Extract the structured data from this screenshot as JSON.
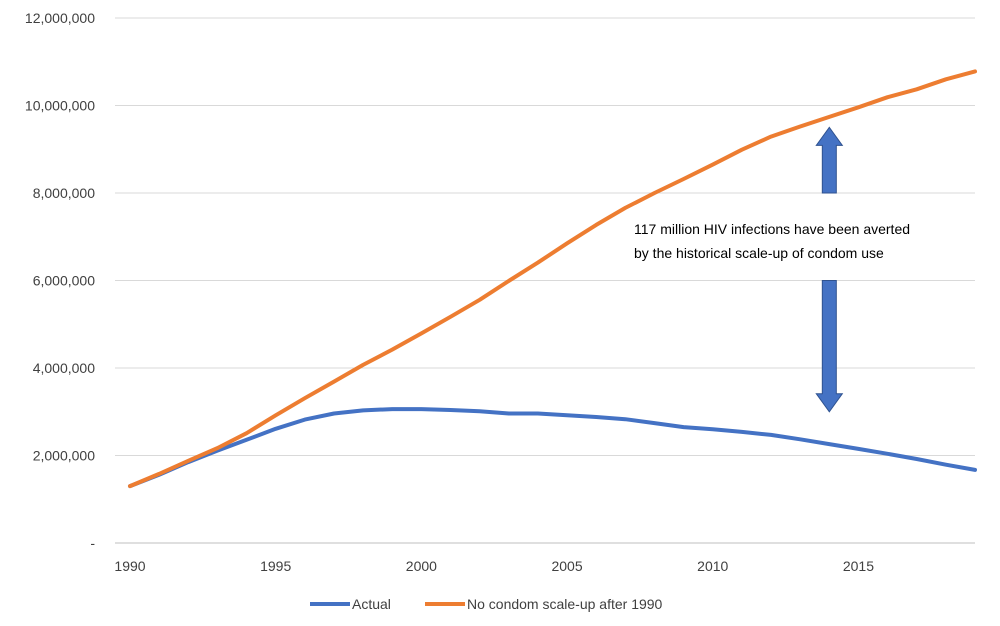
{
  "chart_data": {
    "type": "line",
    "title": "",
    "xlabel": "",
    "ylabel": "",
    "x": [
      1990,
      1991,
      1992,
      1993,
      1994,
      1995,
      1996,
      1997,
      1998,
      1999,
      2000,
      2001,
      2002,
      2003,
      2004,
      2005,
      2006,
      2007,
      2008,
      2009,
      2010,
      2011,
      2012,
      2013,
      2014,
      2015,
      2016,
      2017,
      2018,
      2019
    ],
    "xlim": [
      1990,
      2019
    ],
    "ylim": [
      0,
      12000000
    ],
    "x_ticks": [
      1990,
      1995,
      2000,
      2005,
      2010,
      2015
    ],
    "x_tick_labels": [
      "1990",
      "1995",
      "2000",
      "2005",
      "2010",
      "2015"
    ],
    "y_ticks": [
      0,
      2000000,
      4000000,
      6000000,
      8000000,
      10000000,
      12000000
    ],
    "y_tick_labels": [
      "-",
      "2,000,000",
      "4,000,000",
      "6,000,000",
      "8,000,000",
      "10,000,000",
      "12,000,000"
    ],
    "grid": true,
    "legend_position": "bottom",
    "series": [
      {
        "name": "Actual",
        "color": "#4472c4",
        "values": [
          1300000,
          1560000,
          1850000,
          2110000,
          2360000,
          2610000,
          2820000,
          2960000,
          3030000,
          3060000,
          3060000,
          3040000,
          3010000,
          2960000,
          2960000,
          2920000,
          2880000,
          2830000,
          2740000,
          2650000,
          2600000,
          2540000,
          2470000,
          2370000,
          2260000,
          2150000,
          2040000,
          1920000,
          1790000,
          1670000
        ]
      },
      {
        "name": "No condom scale-up after 1990",
        "color": "#ed7d31",
        "values": [
          1300000,
          1580000,
          1880000,
          2170000,
          2510000,
          2920000,
          3310000,
          3690000,
          4070000,
          4420000,
          4790000,
          5170000,
          5560000,
          5990000,
          6410000,
          6850000,
          7270000,
          7660000,
          8000000,
          8320000,
          8650000,
          8990000,
          9290000,
          9520000,
          9740000,
          9960000,
          10190000,
          10370000,
          10600000,
          10780000
        ]
      }
    ],
    "annotations": [
      {
        "text_lines": [
          "117 million HIV infections have been averted",
          "by the historical scale-up of condom use"
        ],
        "arrow_up": {
          "x": 2014,
          "y_from": 8000000,
          "y_to": 9500000
        },
        "arrow_down": {
          "x": 2014,
          "y_from": 6000000,
          "y_to": 3000000
        },
        "arrow_color": "#4472c4"
      }
    ]
  }
}
